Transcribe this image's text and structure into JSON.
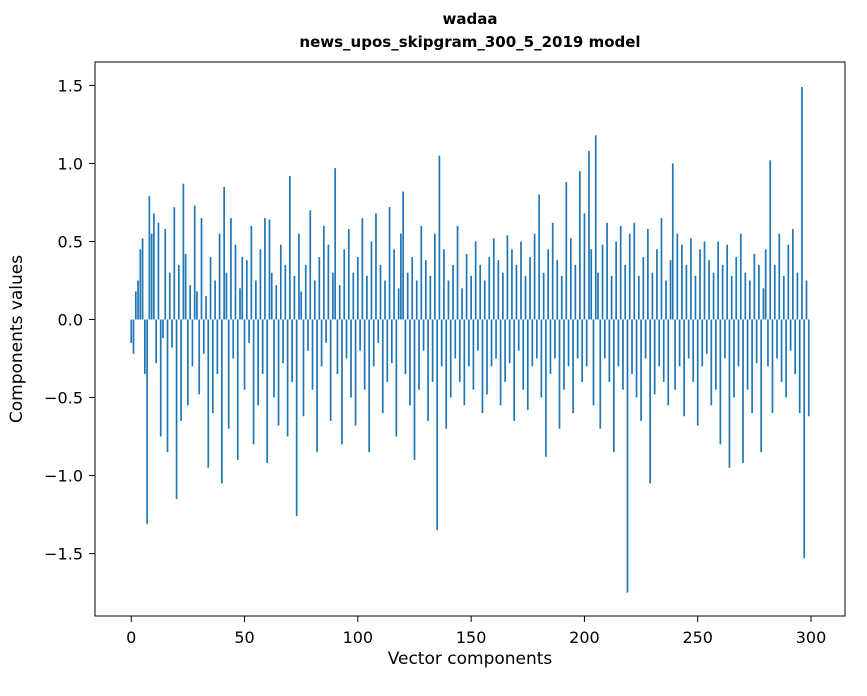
{
  "title": {
    "line1": "wadaa",
    "line2": "news_upos_skipgram_300_5_2019 model"
  },
  "chart_data": {
    "type": "bar",
    "title": "wadaa\nnews_upos_skipgram_300_5_2019 model",
    "xlabel": "Vector components",
    "ylabel": "Components values",
    "xlim": [
      -16,
      315
    ],
    "ylim": [
      -1.9,
      1.65
    ],
    "x_ticks": [
      0,
      50,
      100,
      150,
      200,
      250,
      300
    ],
    "y_ticks": [
      -1.5,
      -1.0,
      -0.5,
      0.0,
      0.5,
      1.0,
      1.5
    ],
    "bar_color": "#1f77b4",
    "grid": false,
    "legend": "none",
    "values": [
      -0.15,
      -0.22,
      0.18,
      0.25,
      0.45,
      0.52,
      -0.35,
      -1.31,
      0.79,
      0.55,
      0.68,
      -0.28,
      0.62,
      -0.75,
      -0.12,
      0.58,
      -0.85,
      0.3,
      -0.18,
      0.72,
      -1.15,
      0.35,
      -0.65,
      0.87,
      0.42,
      -0.55,
      0.22,
      -0.3,
      0.73,
      0.18,
      -0.48,
      0.65,
      -0.22,
      0.15,
      -0.95,
      0.4,
      -0.6,
      0.25,
      -0.35,
      0.55,
      -1.05,
      0.85,
      0.3,
      -0.7,
      0.65,
      -0.25,
      0.48,
      -0.9,
      0.2,
      0.4,
      -0.45,
      0.38,
      -0.15,
      0.6,
      -0.8,
      0.25,
      -0.55,
      0.45,
      -0.35,
      0.65,
      -0.92,
      0.64,
      0.3,
      -0.5,
      0.22,
      -0.68,
      0.48,
      -0.28,
      0.35,
      -0.75,
      0.92,
      -0.4,
      0.28,
      -1.26,
      0.55,
      0.18,
      -0.62,
      0.35,
      -0.2,
      0.7,
      -0.45,
      0.25,
      -0.85,
      0.4,
      -0.3,
      0.6,
      -0.15,
      0.48,
      -0.65,
      0.3,
      0.97,
      -0.35,
      0.22,
      -0.8,
      0.45,
      -0.25,
      0.58,
      -0.5,
      0.3,
      -0.68,
      0.4,
      -0.2,
      0.65,
      -0.45,
      0.28,
      -0.85,
      0.5,
      -0.3,
      0.68,
      -0.15,
      0.35,
      -0.6,
      0.25,
      -0.4,
      0.72,
      -0.28,
      0.45,
      -0.75,
      0.2,
      0.55,
      0.82,
      -0.35,
      0.3,
      -0.55,
      0.4,
      -0.9,
      0.25,
      -0.45,
      0.6,
      -0.2,
      0.38,
      -0.65,
      0.28,
      -0.4,
      0.55,
      -1.35,
      1.05,
      -0.3,
      0.45,
      -0.7,
      0.25,
      -0.5,
      0.35,
      -0.25,
      0.6,
      -0.4,
      0.2,
      -0.55,
      0.42,
      -0.3,
      0.28,
      -0.45,
      0.5,
      -0.2,
      0.35,
      -0.6,
      0.25,
      -0.48,
      0.4,
      -0.3,
      0.52,
      -0.25,
      0.38,
      -0.55,
      0.3,
      -0.4,
      0.54,
      -0.28,
      0.45,
      -0.65,
      0.35,
      -0.2,
      0.5,
      -0.45,
      0.28,
      -0.58,
      0.4,
      -0.3,
      0.55,
      -0.25,
      0.8,
      -0.5,
      0.3,
      -0.88,
      0.45,
      -0.35,
      0.62,
      -0.25,
      0.38,
      -0.7,
      0.28,
      -0.45,
      0.88,
      -0.3,
      0.52,
      -0.6,
      0.35,
      -0.25,
      0.95,
      -0.4,
      0.68,
      -0.3,
      1.08,
      0.45,
      -0.55,
      1.18,
      0.3,
      -0.7,
      0.48,
      -0.25,
      0.62,
      -0.4,
      0.28,
      -0.85,
      0.5,
      -0.3,
      0.6,
      -0.45,
      0.35,
      -1.75,
      0.55,
      -0.35,
      0.62,
      -0.5,
      0.28,
      -0.65,
      0.4,
      -0.25,
      0.58,
      -1.05,
      0.3,
      -0.48,
      0.45,
      -0.3,
      0.65,
      -0.4,
      0.25,
      -0.55,
      0.38,
      1.0,
      -0.45,
      0.55,
      -0.3,
      0.48,
      -0.62,
      0.35,
      -0.25,
      0.52,
      -0.4,
      0.28,
      -0.68,
      0.45,
      -0.3,
      0.5,
      -0.22,
      0.38,
      -0.55,
      0.3,
      -0.45,
      0.5,
      -0.8,
      0.35,
      -0.25,
      0.48,
      -0.95,
      0.28,
      -0.5,
      0.4,
      -0.3,
      0.55,
      -0.92,
      0.3,
      -0.45,
      0.25,
      -0.6,
      0.42,
      -0.28,
      0.35,
      -0.85,
      0.2,
      0.45,
      -0.3,
      1.02,
      -0.6,
      0.35,
      -0.25,
      0.55,
      -0.4,
      0.28,
      -0.5,
      0.48,
      -0.2,
      0.58,
      -0.35,
      0.3,
      -0.6,
      1.49,
      -1.53,
      0.25,
      -0.62
    ]
  }
}
